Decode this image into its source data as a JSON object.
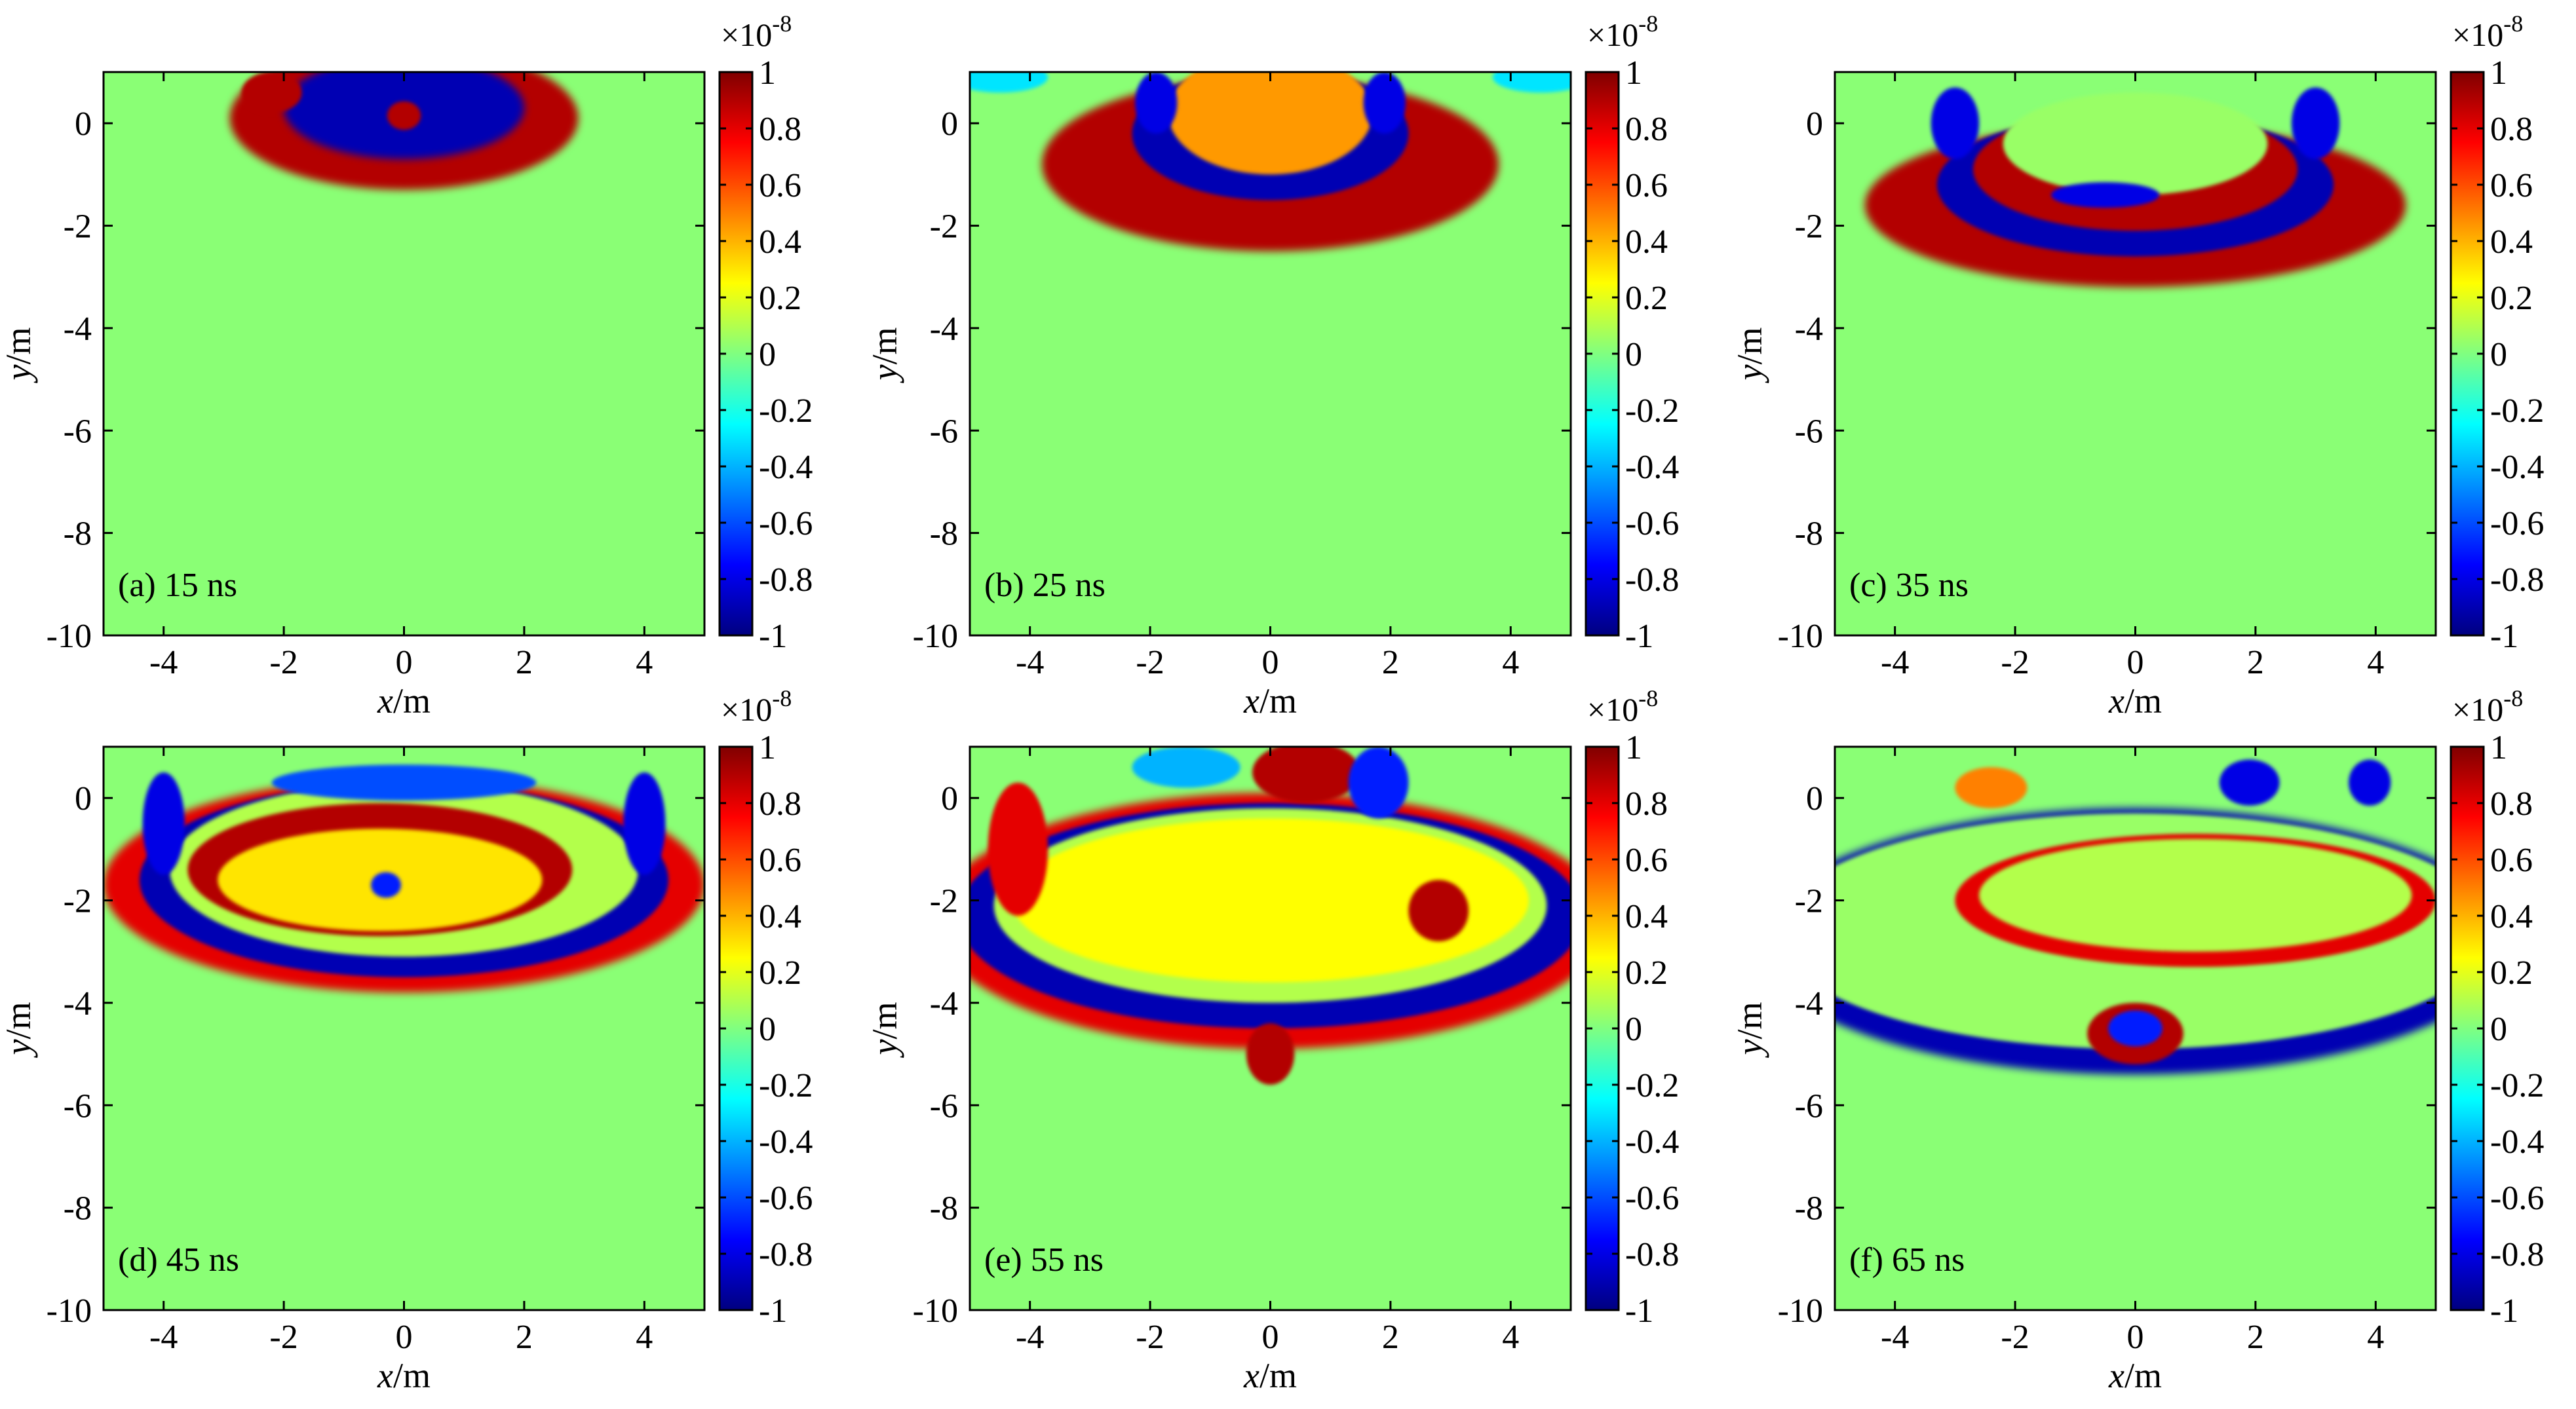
{
  "colorbar": {
    "ticks": [
      1,
      0.8,
      0.6,
      0.4,
      0.2,
      0,
      -0.2,
      -0.4,
      -0.6,
      -0.8,
      -1
    ],
    "tick_labels": [
      "1",
      "0.8",
      "0.6",
      "0.4",
      "0.2",
      "0",
      "-0.2",
      "-0.4",
      "-0.6",
      "-0.8",
      "-1"
    ],
    "multiplier_base": "×10",
    "multiplier_exp": "-8",
    "colormap": "jet",
    "range": [
      -1,
      1
    ]
  },
  "chart_data": [
    {
      "type": "heatmap",
      "panel_label": "(a) 15 ns",
      "time_ns": 15,
      "xlabel_var": "x",
      "xlabel_unit": "/m",
      "ylabel_var": "y",
      "ylabel_unit": "/m",
      "xlim": [
        -5,
        5
      ],
      "ylim": [
        -10,
        1
      ],
      "xticks": [
        -4,
        -2,
        0,
        2,
        4
      ],
      "yticks": [
        0,
        -2,
        -4,
        -6,
        -8,
        -10
      ],
      "value_range": [
        -1,
        1
      ]
    },
    {
      "type": "heatmap",
      "panel_label": "(b) 25 ns",
      "time_ns": 25,
      "xlabel_var": "x",
      "xlabel_unit": "/m",
      "ylabel_var": "y",
      "ylabel_unit": "/m",
      "xlim": [
        -5,
        5
      ],
      "ylim": [
        -10,
        1
      ],
      "xticks": [
        -4,
        -2,
        0,
        2,
        4
      ],
      "yticks": [
        0,
        -2,
        -4,
        -6,
        -8,
        -10
      ],
      "value_range": [
        -1,
        1
      ]
    },
    {
      "type": "heatmap",
      "panel_label": "(c) 35 ns",
      "time_ns": 35,
      "xlabel_var": "x",
      "xlabel_unit": "/m",
      "ylabel_var": "y",
      "ylabel_unit": "/m",
      "xlim": [
        -5,
        5
      ],
      "ylim": [
        -10,
        1
      ],
      "xticks": [
        -4,
        -2,
        0,
        2,
        4
      ],
      "yticks": [
        0,
        -2,
        -4,
        -6,
        -8,
        -10
      ],
      "value_range": [
        -1,
        1
      ]
    },
    {
      "type": "heatmap",
      "panel_label": "(d) 45 ns",
      "time_ns": 45,
      "xlabel_var": "x",
      "xlabel_unit": "/m",
      "ylabel_var": "y",
      "ylabel_unit": "/m",
      "xlim": [
        -5,
        5
      ],
      "ylim": [
        -10,
        1
      ],
      "xticks": [
        -4,
        -2,
        0,
        2,
        4
      ],
      "yticks": [
        0,
        -2,
        -4,
        -6,
        -8,
        -10
      ],
      "value_range": [
        -1,
        1
      ]
    },
    {
      "type": "heatmap",
      "panel_label": "(e) 55 ns",
      "time_ns": 55,
      "xlabel_var": "x",
      "xlabel_unit": "/m",
      "ylabel_var": "y",
      "ylabel_unit": "/m",
      "xlim": [
        -5,
        5
      ],
      "ylim": [
        -10,
        1
      ],
      "xticks": [
        -4,
        -2,
        0,
        2,
        4
      ],
      "yticks": [
        0,
        -2,
        -4,
        -6,
        -8,
        -10
      ],
      "value_range": [
        -1,
        1
      ]
    },
    {
      "type": "heatmap",
      "panel_label": "(f) 65 ns",
      "time_ns": 65,
      "xlabel_var": "x",
      "xlabel_unit": "/m",
      "ylabel_var": "y",
      "ylabel_unit": "/m",
      "xlim": [
        -5,
        5
      ],
      "ylim": [
        -10,
        1
      ],
      "xticks": [
        -4,
        -2,
        0,
        2,
        4
      ],
      "yticks": [
        0,
        -2,
        -4,
        -6,
        -8,
        -10
      ],
      "value_range": [
        -1,
        1
      ]
    }
  ]
}
